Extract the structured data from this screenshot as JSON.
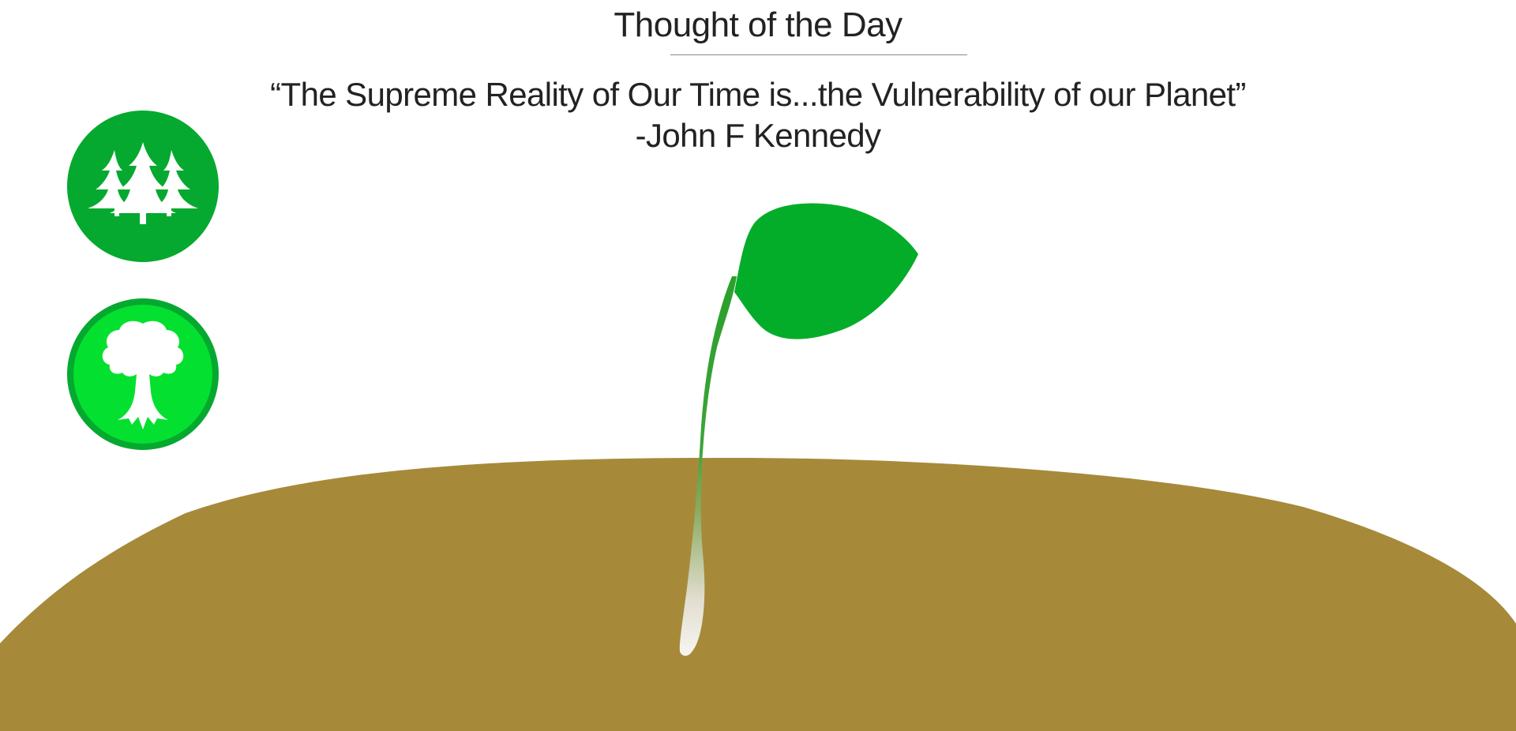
{
  "header": {
    "title": "Thought of the Day"
  },
  "quote": {
    "text": "“The Supreme Reality of Our Time is...the Vulnerability of our Planet”",
    "author": "-John F Kennedy"
  },
  "buttons": [
    {
      "icon": "pine-forest-icon",
      "color": "#05a92f"
    },
    {
      "icon": "leafy-tree-icon",
      "color": "#04e02f"
    }
  ],
  "colors": {
    "soil": "#a68a3a",
    "leaf": "#04ad29",
    "stem": "#2aa02a",
    "root": "#f2f0ea",
    "text": "#222222"
  }
}
